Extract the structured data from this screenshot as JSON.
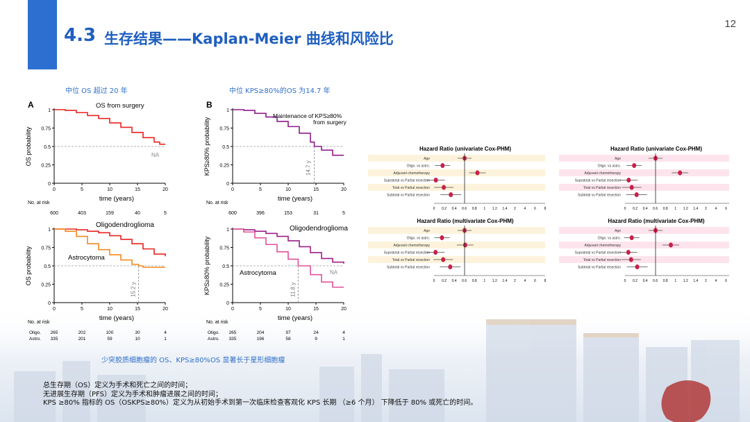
{
  "header": {
    "section_number": "4.3",
    "title": "生存结果——Kaplan-Meier 曲线和风险比",
    "page_number": "12"
  },
  "captions": {
    "left": "中位 OS 超过 20 年",
    "middle": "中位 KPS≥80%的OS 为14.7 年",
    "bottom": "少突胶质细胞瘤的 OS、KPS≥80%OS 显著长于星形细胞瘤"
  },
  "notes": [
    "总生存期（OS）定义为手术和死亡之间的时间；",
    "无进展生存期（PFS）定义为手术和肿瘤进展之间的时间；",
    "KPS ≥80% 指标的 OS（OSKPS≥80%）定义为从初始手术到第一次临床检查客观化 KPS 长期 （≥6 个月） 下降低于 80% 或死亡的时间。"
  ],
  "colors": {
    "accent": "#2d6fd0",
    "os_curve": "#e8231f",
    "kps_curve": "#8b1a8a",
    "oligo": "#e8231f",
    "astro": "#f28a1e",
    "kps_oligo": "#9c1f86",
    "kps_astro": "#e0509a"
  },
  "panels": {
    "A": {
      "letter": "A",
      "title": "OS from surgery",
      "ylabel": "OS probability",
      "xlabel": "time (years)",
      "na": "NA",
      "at_risk_label": "No. at risk",
      "at_risk": [
        "600",
        "403",
        "159",
        "40",
        "5"
      ]
    },
    "B": {
      "letter": "B",
      "title_line1": "Maintenance of KPS≥80%",
      "title_line2": "from surgery",
      "ylabel": "KPS≥80% probability",
      "xlabel": "time (years)",
      "median": "14.7 y",
      "at_risk_label": "No. at risk",
      "at_risk": [
        "600",
        "396",
        "153",
        "31",
        "5"
      ]
    },
    "C": {
      "oligo": "Oligodendroglioma",
      "astro": "Astrocytoma",
      "ylabel": "OS probability",
      "xlabel": "time (years)",
      "median": "15.2 y",
      "at_risk_label": "No. at risk",
      "oligo_row": [
        "Oligo.",
        "265",
        "202",
        "100",
        "30",
        "4"
      ],
      "astro_row": [
        "Astro.",
        "335",
        "201",
        "59",
        "10",
        "1"
      ]
    },
    "D": {
      "oligo": "Oligodendroglioma",
      "astro": "Astrocytoma",
      "na": "NA",
      "ylabel": "KPS≥80% probability",
      "xlabel": "time (years)",
      "median": "11.8 y",
      "at_risk_label": "No. at risk",
      "oligo_row": [
        "Oligo.",
        "265",
        "204",
        "97",
        "24",
        "4"
      ],
      "astro_row": [
        "Astro.",
        "335",
        "196",
        "58",
        "9",
        "1"
      ]
    }
  },
  "ticks": {
    "x": [
      "0",
      "5",
      "10",
      "15",
      "20"
    ],
    "y": [
      "0",
      "0.25",
      "0.5",
      "0.75",
      "1"
    ]
  },
  "forest": {
    "title_uni": "Hazard Ratio (univariate Cox-PHM)",
    "title_multi": "Hazard Ratio (multivariate Cox-PHM)",
    "rows": [
      "Age",
      "Oligo. vs astro.",
      "Adjuvant chemotherapy",
      "Supratotal vs Partial resection",
      "Total vs Partial resection",
      "Subtotal vs Partial resection"
    ],
    "axis": [
      "0",
      "0.2",
      "0.4",
      "0.6",
      "0.8",
      "1",
      "1.2",
      "1.4",
      "2",
      "4",
      "6",
      "8"
    ]
  },
  "chart_data": [
    {
      "type": "line",
      "title": "OS from surgery",
      "xlabel": "time (years)",
      "ylabel": "OS probability",
      "xlim": [
        0,
        20
      ],
      "ylim": [
        0,
        1
      ],
      "series": [
        {
          "x": [
            0,
            2,
            4,
            6,
            8,
            10,
            12,
            14,
            16,
            18,
            19,
            20
          ],
          "y": [
            1,
            0.99,
            0.96,
            0.92,
            0.88,
            0.82,
            0.76,
            0.69,
            0.62,
            0.56,
            0.53,
            0.53
          ]
        }
      ]
    },
    {
      "type": "line",
      "title": "Maintenance of KPS≥80% from surgery",
      "xlabel": "time (years)",
      "ylabel": "KPS≥80% probability",
      "xlim": [
        0,
        20
      ],
      "ylim": [
        0,
        1
      ],
      "series": [
        {
          "x": [
            0,
            2,
            4,
            6,
            8,
            10,
            12,
            14,
            14.7,
            16,
            18,
            20
          ],
          "y": [
            1,
            0.99,
            0.95,
            0.9,
            0.84,
            0.77,
            0.68,
            0.56,
            0.5,
            0.45,
            0.38,
            0.38
          ]
        }
      ]
    },
    {
      "type": "line",
      "xlabel": "time (years)",
      "ylabel": "OS probability",
      "xlim": [
        0,
        20
      ],
      "ylim": [
        0,
        1
      ],
      "series": [
        {
          "name": "Oligodendroglioma",
          "x": [
            0,
            2,
            4,
            6,
            8,
            10,
            12,
            14,
            16,
            18,
            20
          ],
          "y": [
            1,
            1,
            0.99,
            0.97,
            0.95,
            0.91,
            0.86,
            0.8,
            0.73,
            0.66,
            0.63
          ]
        },
        {
          "name": "Astrocytoma",
          "x": [
            0,
            2,
            4,
            6,
            8,
            10,
            12,
            14,
            15.2,
            16,
            18,
            20
          ],
          "y": [
            1,
            0.97,
            0.9,
            0.8,
            0.72,
            0.65,
            0.58,
            0.52,
            0.5,
            0.48,
            0.48,
            0.48
          ]
        }
      ]
    },
    {
      "type": "line",
      "xlabel": "time (years)",
      "ylabel": "KPS≥80% probability",
      "xlim": [
        0,
        20
      ],
      "ylim": [
        0,
        1
      ],
      "series": [
        {
          "name": "Oligodendroglioma",
          "x": [
            0,
            2,
            4,
            6,
            8,
            10,
            12,
            14,
            16,
            18,
            20
          ],
          "y": [
            1,
            0.99,
            0.97,
            0.94,
            0.9,
            0.84,
            0.76,
            0.68,
            0.6,
            0.55,
            0.53
          ]
        },
        {
          "name": "Astrocytoma",
          "x": [
            0,
            2,
            4,
            6,
            8,
            10,
            11.8,
            14,
            16,
            18,
            20
          ],
          "y": [
            1,
            0.96,
            0.88,
            0.79,
            0.69,
            0.59,
            0.5,
            0.38,
            0.28,
            0.21,
            0.21
          ]
        }
      ]
    }
  ]
}
